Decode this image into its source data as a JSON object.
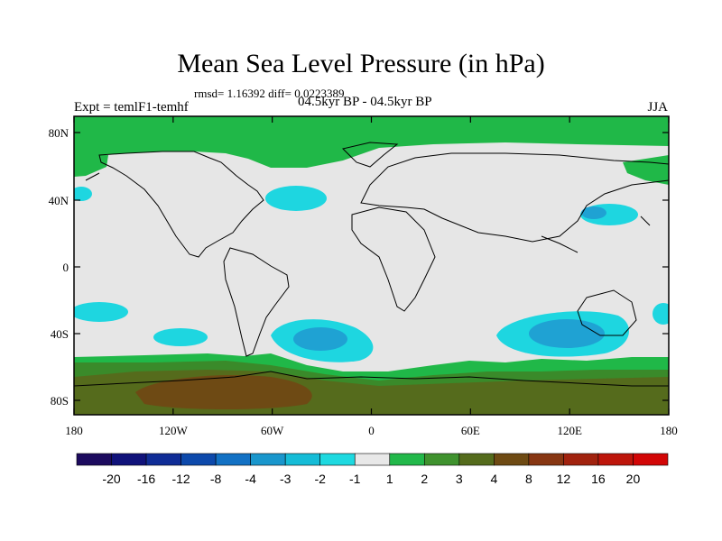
{
  "title": "Mean Sea Level Pressure (in hPa)",
  "stats": "rmsd= 1.16392 diff= 0.0223389",
  "subtitle": "04.5kyr BP - 04.5kyr BP",
  "experiment": "Expt = temlF1-temhf",
  "season": "JJA",
  "map": {
    "lat_ticks": [
      "80N",
      "40N",
      "0",
      "40S",
      "80S"
    ],
    "lon_ticks": [
      "180",
      "120W",
      "60W",
      "0",
      "60E",
      "120E",
      "180"
    ]
  },
  "colorbar": {
    "labels": [
      "-20",
      "-16",
      "-12",
      "-8",
      "-4",
      "-3",
      "-2",
      "-1",
      "1",
      "2",
      "3",
      "4",
      "8",
      "12",
      "16",
      "20"
    ],
    "colors": [
      "#1c0a5e",
      "#10127a",
      "#0f2c96",
      "#0d49ab",
      "#1271c4",
      "#1996cc",
      "#15bcd7",
      "#1ed9e0",
      "#e8e8e8",
      "#22b84a",
      "#3f922e",
      "#546b1c",
      "#6e4a13",
      "#873612",
      "#a1220e",
      "#bd150a",
      "#d20606"
    ]
  },
  "palette": {
    "land_line": "#000000",
    "neutral": "#e6e6e6",
    "green": "#20b848",
    "dark_green": "#3a8a2a",
    "olive": "#556b1c",
    "brown": "#6e4a14",
    "cyan": "#1ed6e0",
    "blue": "#1fa2d3"
  }
}
